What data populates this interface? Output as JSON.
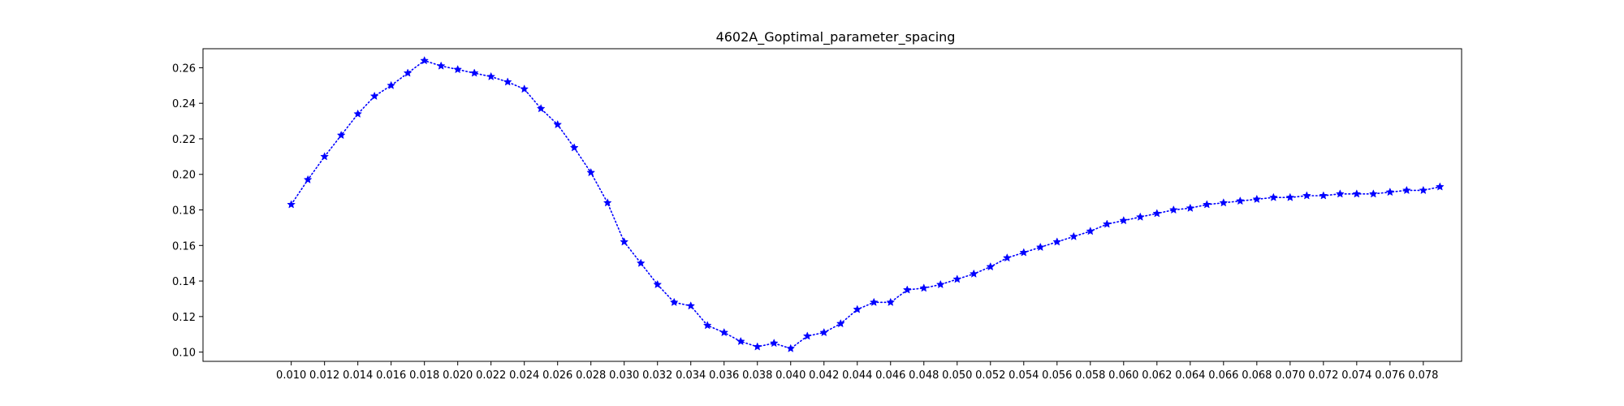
{
  "chart_data": {
    "type": "line",
    "title": "4602A_Goptimal_parameter_spacing",
    "xlabel": "",
    "ylabel": "",
    "x": [
      0.01,
      0.011,
      0.012,
      0.013,
      0.014,
      0.015,
      0.016,
      0.017,
      0.018,
      0.019,
      0.02,
      0.021,
      0.022,
      0.023,
      0.024,
      0.025,
      0.026,
      0.027,
      0.028,
      0.029,
      0.03,
      0.031,
      0.032,
      0.033,
      0.034,
      0.035,
      0.036,
      0.037,
      0.038,
      0.039,
      0.04,
      0.041,
      0.042,
      0.043,
      0.044,
      0.045,
      0.046,
      0.047,
      0.048,
      0.049,
      0.05,
      0.051,
      0.052,
      0.053,
      0.054,
      0.055,
      0.056,
      0.057,
      0.058,
      0.059,
      0.06,
      0.061,
      0.062,
      0.063,
      0.064,
      0.065,
      0.066,
      0.067,
      0.068,
      0.069,
      0.07,
      0.071,
      0.072,
      0.073,
      0.074,
      0.075,
      0.076,
      0.077,
      0.078,
      0.079
    ],
    "series": [
      {
        "values": [
          0.183,
          0.197,
          0.21,
          0.222,
          0.234,
          0.244,
          0.25,
          0.257,
          0.264,
          0.261,
          0.259,
          0.257,
          0.255,
          0.252,
          0.248,
          0.237,
          0.228,
          0.215,
          0.201,
          0.184,
          0.162,
          0.15,
          0.138,
          0.128,
          0.126,
          0.115,
          0.111,
          0.106,
          0.103,
          0.105,
          0.102,
          0.109,
          0.111,
          0.116,
          0.124,
          0.128,
          0.128,
          0.135,
          0.136,
          0.138,
          0.141,
          0.144,
          0.148,
          0.153,
          0.156,
          0.159,
          0.162,
          0.165,
          0.168,
          0.172,
          0.174,
          0.176,
          0.178,
          0.18,
          0.181,
          0.183,
          0.184,
          0.185,
          0.186,
          0.187,
          0.187,
          0.188,
          0.188,
          0.189,
          0.189,
          0.189,
          0.19,
          0.191,
          0.191,
          0.193
        ],
        "color": "#0000ff",
        "line_style": "dotted",
        "marker": "star"
      }
    ],
    "xticks": [
      "0.010",
      "0.012",
      "0.014",
      "0.016",
      "0.018",
      "0.020",
      "0.022",
      "0.024",
      "0.026",
      "0.028",
      "0.030",
      "0.032",
      "0.034",
      "0.036",
      "0.038",
      "0.040",
      "0.042",
      "0.044",
      "0.046",
      "0.048",
      "0.050",
      "0.052",
      "0.054",
      "0.056",
      "0.058",
      "0.060",
      "0.062",
      "0.064",
      "0.066",
      "0.068",
      "0.070",
      "0.072",
      "0.074",
      "0.076",
      "0.078"
    ],
    "yticks": [
      "0.10",
      "0.12",
      "0.14",
      "0.16",
      "0.18",
      "0.20",
      "0.22",
      "0.24",
      "0.26"
    ],
    "xlim": [
      0.0047,
      0.0803
    ],
    "ylim": [
      0.0948,
      0.2707
    ],
    "grid": false,
    "legend": false
  }
}
